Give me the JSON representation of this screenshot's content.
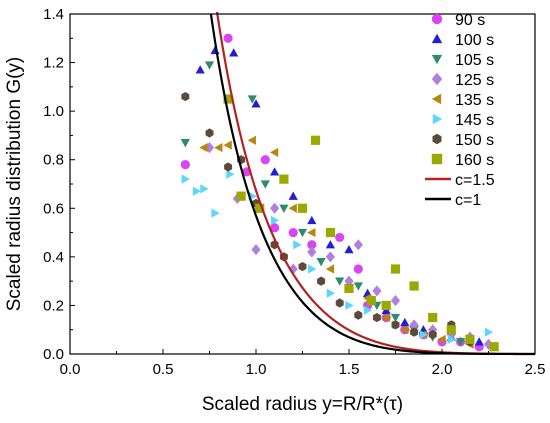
{
  "chart_data": {
    "type": "scatter",
    "xlabel": "Scaled radius y=R/R*(τ)",
    "ylabel": "Scaled radius distribution G(y)",
    "xlim": [
      0.0,
      2.5
    ],
    "ylim": [
      0.0,
      1.4
    ],
    "xticks": [
      "0.0",
      "0.5",
      "1.0",
      "1.5",
      "2.0",
      "2.5"
    ],
    "yticks": [
      "0.0",
      "0.2",
      "0.4",
      "0.6",
      "0.8",
      "1.0",
      "1.2",
      "1.4"
    ],
    "grid": false,
    "legend_position": "top-right",
    "series": [
      {
        "name": "90 s",
        "marker": "circle",
        "color": "#d946ef",
        "points": [
          [
            0.62,
            0.78
          ],
          [
            0.85,
            1.3
          ],
          [
            0.95,
            0.75
          ],
          [
            1.05,
            0.8
          ],
          [
            1.1,
            0.52
          ],
          [
            1.2,
            0.5
          ],
          [
            1.3,
            0.45
          ],
          [
            1.45,
            0.48
          ],
          [
            1.55,
            0.35
          ],
          [
            1.6,
            0.2
          ],
          [
            1.7,
            0.15
          ],
          [
            1.8,
            0.1
          ],
          [
            1.9,
            0.08
          ],
          [
            2.0,
            0.05
          ],
          [
            2.1,
            0.05
          ],
          [
            2.2,
            0.03
          ]
        ]
      },
      {
        "name": "100 s",
        "marker": "triangle-up",
        "color": "#1f1fd6",
        "points": [
          [
            0.7,
            1.17
          ],
          [
            0.78,
            1.25
          ],
          [
            0.88,
            1.24
          ],
          [
            1.0,
            1.03
          ],
          [
            1.1,
            0.75
          ],
          [
            1.2,
            0.65
          ],
          [
            1.3,
            0.55
          ],
          [
            1.4,
            0.45
          ],
          [
            1.5,
            0.43
          ],
          [
            1.6,
            0.25
          ],
          [
            1.7,
            0.18
          ],
          [
            1.8,
            0.13
          ],
          [
            1.9,
            0.1
          ],
          [
            2.05,
            0.07
          ],
          [
            2.2,
            0.05
          ]
        ]
      },
      {
        "name": "105 s",
        "marker": "triangle-down",
        "color": "#2e8b6e",
        "points": [
          [
            0.62,
            0.87
          ],
          [
            0.75,
            1.19
          ],
          [
            0.98,
            1.05
          ],
          [
            1.05,
            0.7
          ],
          [
            1.15,
            0.6
          ],
          [
            1.25,
            0.5
          ],
          [
            1.35,
            0.38
          ],
          [
            1.45,
            0.3
          ],
          [
            1.55,
            0.28
          ],
          [
            1.65,
            0.2
          ],
          [
            1.75,
            0.15
          ],
          [
            1.85,
            0.1
          ],
          [
            1.95,
            0.07
          ],
          [
            2.1,
            0.05
          ]
        ]
      },
      {
        "name": "125 s",
        "marker": "diamond",
        "color": "#b07fe0",
        "points": [
          [
            0.75,
            0.85
          ],
          [
            0.9,
            0.64
          ],
          [
            1.0,
            0.43
          ],
          [
            1.1,
            0.6
          ],
          [
            1.2,
            0.35
          ],
          [
            1.3,
            0.42
          ],
          [
            1.4,
            0.4
          ],
          [
            1.5,
            0.3
          ],
          [
            1.55,
            0.45
          ],
          [
            1.65,
            0.26
          ],
          [
            1.75,
            0.22
          ],
          [
            1.85,
            0.12
          ],
          [
            1.95,
            0.1
          ],
          [
            2.05,
            0.08
          ],
          [
            2.15,
            0.07
          ],
          [
            2.25,
            0.04
          ]
        ]
      },
      {
        "name": "135 s",
        "marker": "triangle-left",
        "color": "#b8860b",
        "points": [
          [
            0.72,
            0.85
          ],
          [
            0.8,
            0.85
          ],
          [
            0.85,
            0.86
          ],
          [
            0.98,
            0.88
          ],
          [
            1.1,
            0.83
          ],
          [
            1.2,
            0.6
          ],
          [
            1.3,
            0.5
          ],
          [
            1.4,
            0.35
          ],
          [
            1.5,
            0.27
          ],
          [
            1.6,
            0.23
          ],
          [
            1.7,
            0.15
          ],
          [
            1.8,
            0.1
          ],
          [
            1.9,
            0.08
          ],
          [
            2.0,
            0.06
          ],
          [
            2.15,
            0.04
          ]
        ]
      },
      {
        "name": "145 s",
        "marker": "triangle-right",
        "color": "#5cd6ff",
        "points": [
          [
            0.62,
            0.72
          ],
          [
            0.68,
            0.67
          ],
          [
            0.72,
            0.68
          ],
          [
            0.78,
            0.58
          ],
          [
            0.86,
            0.74
          ],
          [
            0.98,
            0.65
          ],
          [
            1.1,
            0.55
          ],
          [
            1.22,
            0.45
          ],
          [
            1.3,
            0.35
          ],
          [
            1.4,
            0.25
          ],
          [
            1.5,
            0.2
          ],
          [
            1.6,
            0.18
          ],
          [
            1.75,
            0.12
          ],
          [
            1.9,
            0.08
          ],
          [
            2.05,
            0.06
          ],
          [
            2.25,
            0.09
          ]
        ]
      },
      {
        "name": "150 s",
        "marker": "hexagon",
        "color": "#5c4a3a",
        "points": [
          [
            0.62,
            1.06
          ],
          [
            0.75,
            0.91
          ],
          [
            0.85,
            0.77
          ],
          [
            0.92,
            0.8
          ],
          [
            1.0,
            0.62
          ],
          [
            1.1,
            0.45
          ],
          [
            1.15,
            0.4
          ],
          [
            1.25,
            0.36
          ],
          [
            1.35,
            0.3
          ],
          [
            1.45,
            0.21
          ],
          [
            1.55,
            0.16
          ],
          [
            1.65,
            0.15
          ],
          [
            1.75,
            0.12
          ],
          [
            1.85,
            0.09
          ],
          [
            1.95,
            0.08
          ],
          [
            2.05,
            0.12
          ],
          [
            2.15,
            0.05
          ]
        ]
      },
      {
        "name": "160 s",
        "marker": "square",
        "color": "#9aa800",
        "points": [
          [
            0.85,
            1.05
          ],
          [
            0.92,
            0.65
          ],
          [
            1.02,
            0.6
          ],
          [
            1.15,
            0.72
          ],
          [
            1.25,
            0.6
          ],
          [
            1.32,
            0.88
          ],
          [
            1.4,
            0.5
          ],
          [
            1.5,
            0.27
          ],
          [
            1.62,
            0.22
          ],
          [
            1.7,
            0.2
          ],
          [
            1.75,
            0.35
          ],
          [
            1.85,
            0.28
          ],
          [
            1.95,
            0.15
          ],
          [
            2.05,
            0.1
          ],
          [
            2.15,
            0.06
          ],
          [
            2.28,
            0.03
          ]
        ]
      }
    ],
    "curves": [
      {
        "name": "c=1.5",
        "color": "#b22222",
        "c": 1.5
      },
      {
        "name": "c=1",
        "color": "#000000",
        "c": 1
      }
    ]
  }
}
